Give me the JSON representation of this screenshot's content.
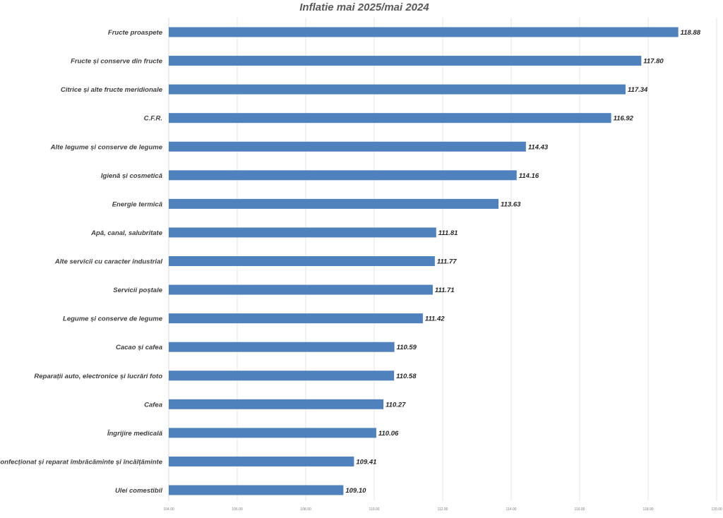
{
  "chart_data": {
    "type": "bar",
    "orientation": "horizontal",
    "title": "Inflatie mai 2025/mai 2024",
    "xlabel": "",
    "ylabel": "",
    "xlim": [
      104,
      120
    ],
    "ticks": [
      "104.00",
      "106.00",
      "108.00",
      "110.00",
      "112.00",
      "114.00",
      "116.00",
      "118.00",
      "120.00"
    ],
    "tick_values": [
      104,
      106,
      108,
      110,
      112,
      114,
      116,
      118,
      120
    ],
    "grid": true,
    "bar_color": "#4f81bd",
    "categories": [
      "Fructe proaspete",
      "Fructe și conserve din fructe",
      "Citrice și alte fructe meridionale",
      "C.F.R.",
      "Alte legume și conserve de legume",
      "Igienă și cosmetică",
      "Energie termică",
      "Apă, canal, salubritate",
      "Alte servicii cu caracter industrial",
      "Servicii poștale",
      "Legume și conserve de legume",
      "Cacao și cafea",
      "Reparații auto, electronice și lucrări foto",
      "Cafea",
      "Îngrijire medicală",
      "Confecționat și reparat îmbrăcăminte și încălțăminte",
      "Ulei comestibil"
    ],
    "values": [
      118.88,
      117.8,
      117.34,
      116.92,
      114.43,
      114.16,
      113.63,
      111.81,
      111.77,
      111.71,
      111.42,
      110.59,
      110.58,
      110.27,
      110.06,
      109.41,
      109.1
    ],
    "value_labels": [
      "118.88",
      "117.80",
      "117.34",
      "116.92",
      "114.43",
      "114.16",
      "113.63",
      "111.81",
      "111.77",
      "111.71",
      "111.42",
      "110.59",
      "110.58",
      "110.27",
      "110.06",
      "109.41",
      "109.10"
    ]
  }
}
